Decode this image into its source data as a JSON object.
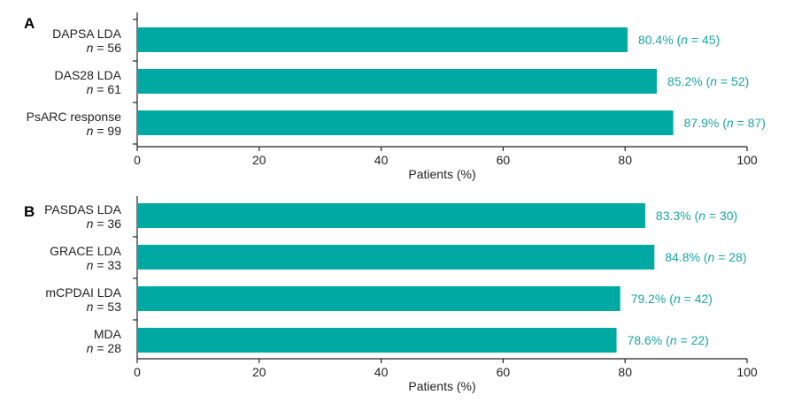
{
  "colors": {
    "bar": "#00aaa3",
    "label": "#1aa6a0",
    "axis": "#222222"
  },
  "chart_data": [
    {
      "type": "bar",
      "orientation": "horizontal",
      "panel": "A",
      "categories": [
        "DAPSA LDA",
        "DAS28 LDA",
        "PsARC response"
      ],
      "n_labels": [
        "56",
        "61",
        "99"
      ],
      "values": [
        80.4,
        85.2,
        87.9
      ],
      "data_labels": [
        {
          "pct": "80.4%",
          "n": "45"
        },
        {
          "pct": "85.2%",
          "n": "52"
        },
        {
          "pct": "87.9%",
          "n": "87"
        }
      ],
      "xlabel": "Patients (%)",
      "xlim": [
        0,
        100
      ],
      "xticks": [
        0,
        20,
        40,
        60,
        80,
        100
      ],
      "grid": false,
      "legend": "none"
    },
    {
      "type": "bar",
      "orientation": "horizontal",
      "panel": "B",
      "categories": [
        "PASDAS LDA",
        "GRACE LDA",
        "mCPDAI LDA",
        "MDA"
      ],
      "n_labels": [
        "36",
        "33",
        "53",
        "28"
      ],
      "values": [
        83.3,
        84.8,
        79.2,
        78.6
      ],
      "data_labels": [
        {
          "pct": "83.3%",
          "n": "30"
        },
        {
          "pct": "84.8%",
          "n": "28"
        },
        {
          "pct": "79.2%",
          "n": "42"
        },
        {
          "pct": "78.6%",
          "n": "22"
        }
      ],
      "xlabel": "Patients (%)",
      "xlim": [
        0,
        100
      ],
      "xticks": [
        0,
        20,
        40,
        60,
        80,
        100
      ],
      "grid": false,
      "legend": "none"
    }
  ]
}
